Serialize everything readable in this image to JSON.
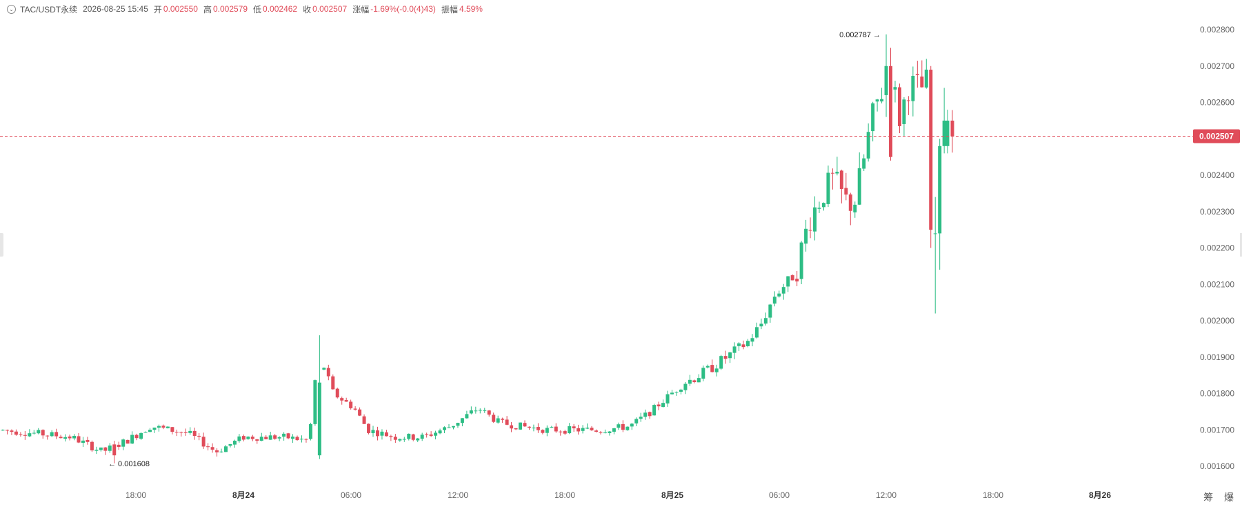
{
  "header": {
    "symbol": "TAC/USDT永续",
    "datetime": "2026-08-25 15:45",
    "open_label": "开",
    "open_value": "0.002550",
    "high_label": "高",
    "high_value": "0.002579",
    "low_label": "低",
    "low_value": "0.002462",
    "close_label": "收",
    "close_value": "0.002507",
    "change_label": "涨幅",
    "change_value": "-1.69%(-0.0(4)43)",
    "amplitude_label": "振幅",
    "amplitude_value": "4.59%"
  },
  "tools": {
    "label": "筹 爆"
  },
  "colors": {
    "up": "#2ebd85",
    "down": "#e04c5a",
    "price_line": "#e04c5a",
    "label_text": "#ffffff"
  },
  "chart_data": {
    "type": "candlestick",
    "y_ticks": [
      "0.001600",
      "0.001700",
      "0.001800",
      "0.001900",
      "0.002000",
      "0.002100",
      "0.002200",
      "0.002300",
      "0.002400",
      "0.002500",
      "0.002600",
      "0.002700",
      "0.002800"
    ],
    "ylim": [
      0.00158,
      0.00283
    ],
    "x_ticks": [
      "18:00",
      "8月24",
      "06:00",
      "12:00",
      "18:00",
      "8月25",
      "06:00",
      "12:00",
      "18:00",
      "8月26"
    ],
    "last_price": "0.002507",
    "annotations": {
      "high": "0.002787",
      "low": "0.001608"
    },
    "candles_summary": [
      {
        "t": "start",
        "o": 0.0017,
        "c": 0.00169
      },
      {
        "t": "18:00",
        "o": 0.00169,
        "c": 0.00164
      },
      {
        "t": "03:00",
        "o": 0.00168,
        "c": 0.00189
      },
      {
        "t": "06:00",
        "o": 0.0018,
        "c": 0.00169
      },
      {
        "t": "12:00",
        "o": 0.0017,
        "c": 0.00175
      },
      {
        "t": "18:00",
        "o": 0.00171,
        "c": 0.0017
      },
      {
        "t": "8月25",
        "o": 0.00178,
        "c": 0.00186
      },
      {
        "t": "06:00",
        "o": 0.002,
        "c": 0.0021
      },
      {
        "t": "10:00",
        "o": 0.0023,
        "c": 0.00248
      },
      {
        "t": "12:00",
        "o": 0.0027,
        "c": 0.0025
      },
      {
        "t": "14:00",
        "o": 0.0027,
        "c": 0.00225
      },
      {
        "t": "15:45",
        "o": 0.00255,
        "c": 0.002507
      }
    ]
  }
}
